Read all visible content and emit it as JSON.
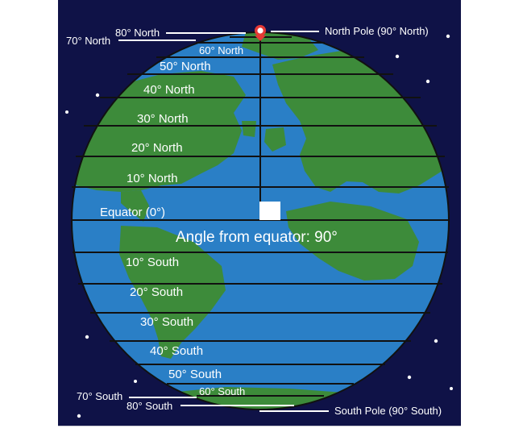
{
  "diagram": {
    "north_labels": {
      "pole": "North Pole (90° North)",
      "n80": "80° North",
      "n70": "70° North",
      "n60": "60° North",
      "n50": "50° North",
      "n40": "40° North",
      "n30": "30° North",
      "n20": "20° North",
      "n10": "10° North"
    },
    "equator_label": "Equator (0°)",
    "angle_readout": "Angle from equator: 90°",
    "south_labels": {
      "s10": "10° South",
      "s20": "20° South",
      "s30": "30° South",
      "s40": "40° South",
      "s50": "50° South",
      "s60": "60° South",
      "s70": "70° South",
      "s80": "80° South",
      "pole": "South Pole (90° South)"
    },
    "colors": {
      "background": "#0f1247",
      "ocean": "#2a7fc6",
      "land": "#3d8b3a",
      "lines": "#111111",
      "marker": "#e53935",
      "text": "#ffffff"
    }
  }
}
